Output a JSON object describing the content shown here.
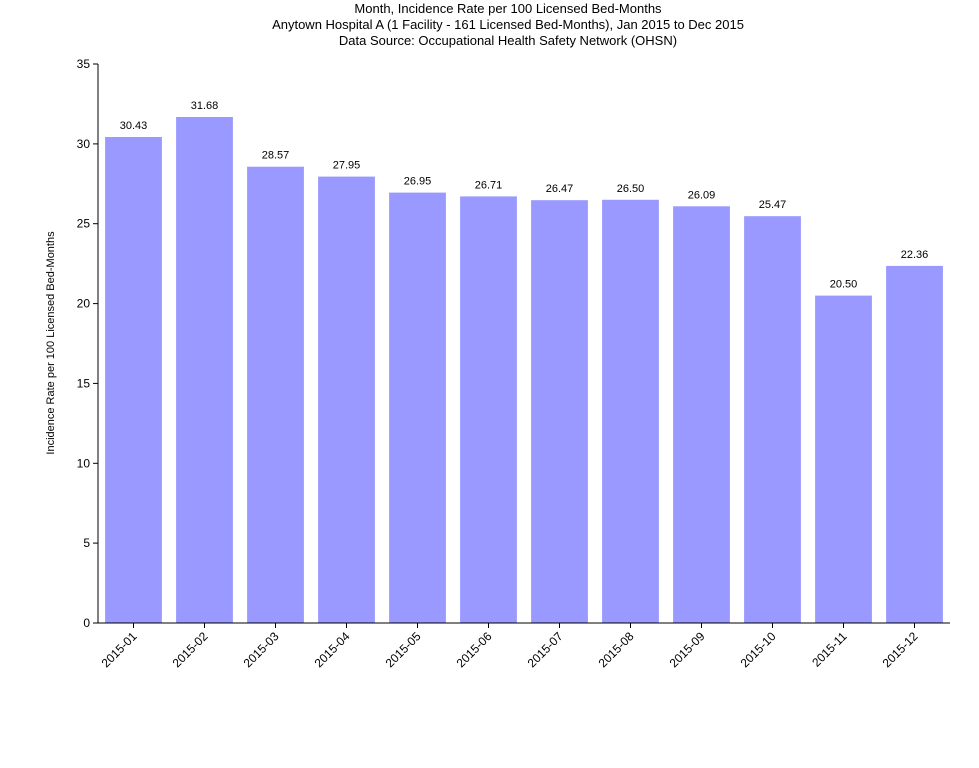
{
  "chart_data": {
    "type": "bar",
    "title_lines": [
      "Month, Incidence Rate per 100 Licensed Bed-Months",
      "Anytown Hospital A (1 Facility - 161 Licensed Bed-Months), Jan 2015 to Dec 2015",
      "Data Source: Occupational Health Safety Network (OHSN)"
    ],
    "xlabel": "",
    "ylabel": "Incidence Rate per 100 Licensed Bed-Months",
    "ylim": [
      0,
      35
    ],
    "yticks": [
      "0",
      "5",
      "10",
      "15",
      "20",
      "25",
      "30",
      "35"
    ],
    "categories": [
      "2015-01",
      "2015-02",
      "2015-03",
      "2015-04",
      "2015-05",
      "2015-06",
      "2015-07",
      "2015-08",
      "2015-09",
      "2015-10",
      "2015-11",
      "2015-12"
    ],
    "values": [
      30.43,
      31.68,
      28.57,
      27.95,
      26.95,
      26.71,
      26.47,
      26.5,
      26.09,
      25.47,
      20.5,
      22.36
    ],
    "value_labels": [
      "30.43",
      "31.68",
      "28.57",
      "27.95",
      "26.95",
      "26.71",
      "26.47",
      "26.50",
      "26.09",
      "25.47",
      "20.50",
      "22.36"
    ],
    "bar_color": "#9999ff",
    "grid": false,
    "legend": "none"
  }
}
